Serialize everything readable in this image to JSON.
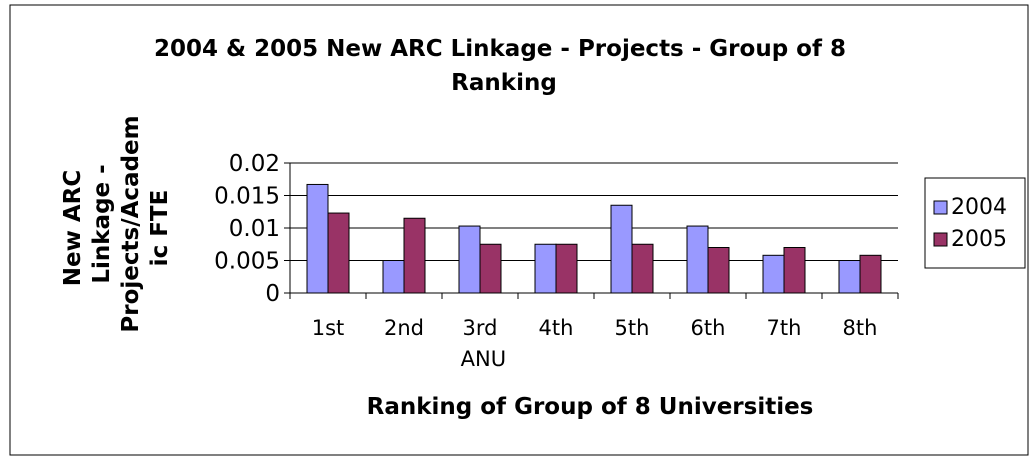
{
  "chart_data": {
    "type": "bar",
    "title": "2004 & 2005 New ARC Linkage - Projects - Group of 8 Ranking",
    "x_label": "Ranking of Group of 8 Universities",
    "y_label": "New ARC Linkage - Projects/Academic FTE",
    "categories": [
      "1st",
      "2nd",
      "3rd ANU",
      "4th",
      "5th",
      "6th",
      "7th",
      "8th"
    ],
    "series": [
      {
        "name": "2004",
        "color": "#9999ff",
        "values": [
          0.0167,
          0.005,
          0.0103,
          0.0075,
          0.0135,
          0.0103,
          0.0058,
          0.005
        ]
      },
      {
        "name": "2005",
        "color": "#993366",
        "values": [
          0.0123,
          0.0115,
          0.0075,
          0.0075,
          0.0075,
          0.007,
          0.007,
          0.0058
        ]
      }
    ],
    "ylim": [
      0,
      0.02
    ],
    "yticks": [
      0,
      0.005,
      0.01,
      0.015,
      0.02
    ],
    "grid": true,
    "legend": "right"
  }
}
